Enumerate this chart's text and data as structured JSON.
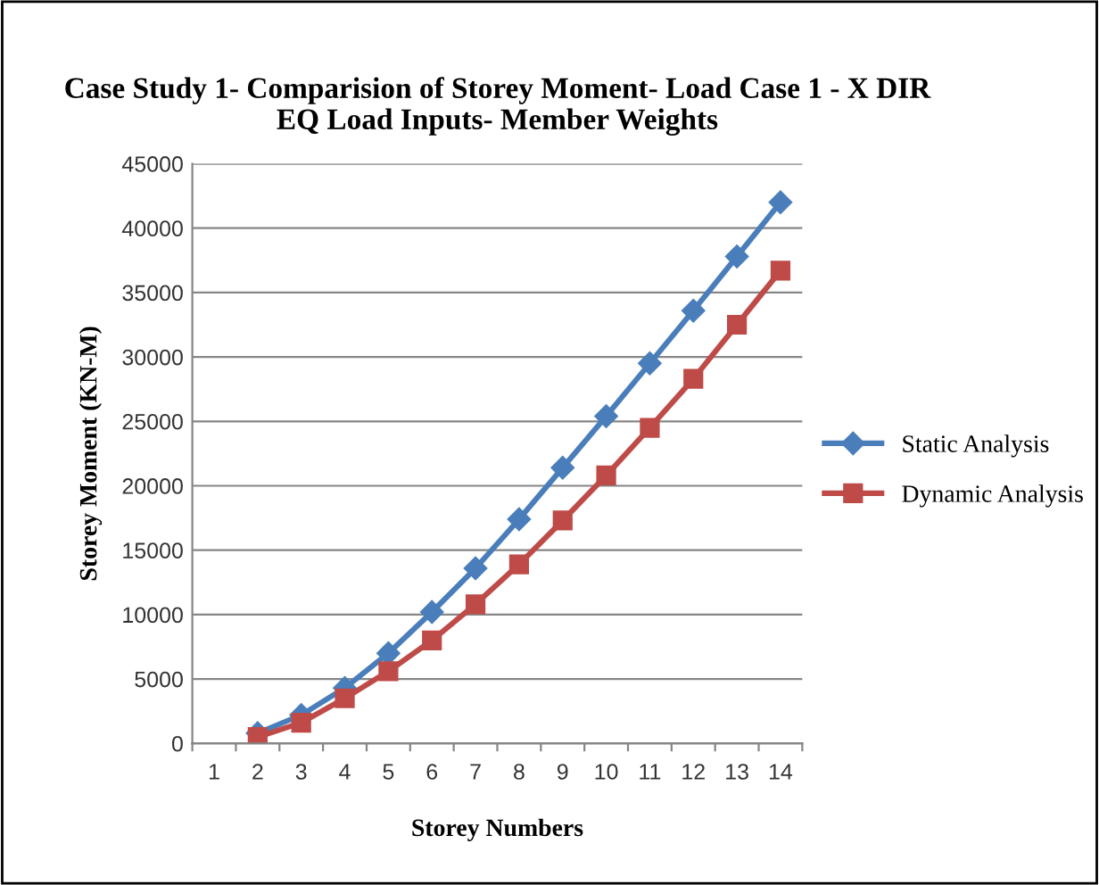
{
  "chart_data": {
    "type": "line",
    "title": "Case Study 1- Comparision of Storey Moment- Load Case 1 - X DIR\nEQ Load Inputs- Member Weights",
    "xlabel": "Storey Numbers",
    "ylabel": "Storey Moment (KN-M)",
    "categories": [
      "1",
      "2",
      "3",
      "4",
      "5",
      "6",
      "7",
      "8",
      "9",
      "10",
      "11",
      "12",
      "13",
      "14"
    ],
    "series": [
      {
        "name": "Static Analysis",
        "color": "#4a7ebb",
        "marker": "diamond",
        "values": [
          null,
          800,
          2200,
          4300,
          7000,
          10200,
          13600,
          17400,
          21400,
          25400,
          29500,
          33600,
          37800,
          42000
        ]
      },
      {
        "name": "Dynamic Analysis",
        "color": "#be4b48",
        "marker": "square",
        "values": [
          null,
          500,
          1600,
          3500,
          5600,
          8000,
          10800,
          13900,
          17300,
          20800,
          24500,
          28300,
          32500,
          36700
        ]
      }
    ],
    "ylim": [
      0,
      45000
    ],
    "yticks": [
      0,
      5000,
      10000,
      15000,
      20000,
      25000,
      30000,
      35000,
      40000,
      45000
    ],
    "grid": "y",
    "legend": "right"
  }
}
